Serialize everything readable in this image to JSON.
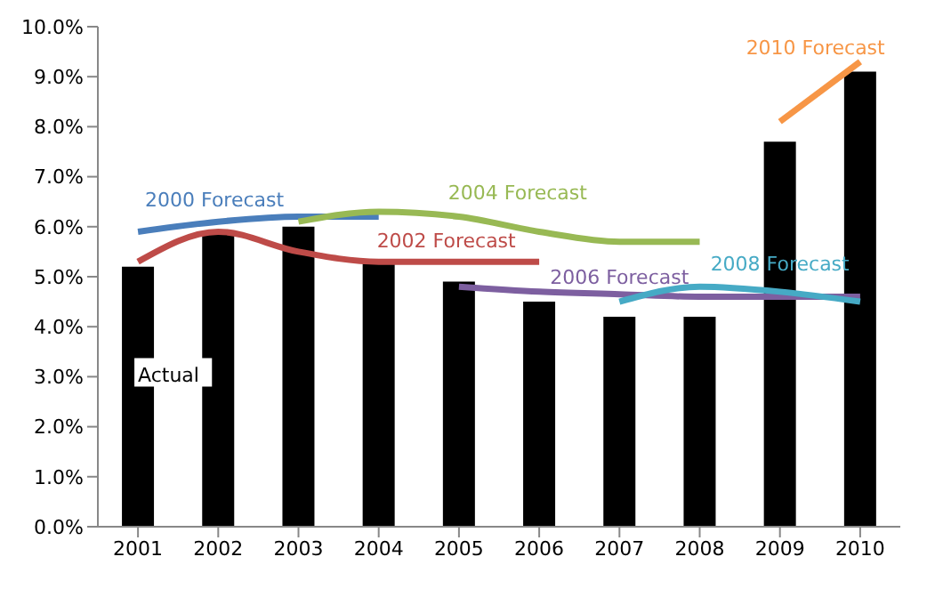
{
  "chart_data": {
    "type": "bar",
    "categories": [
      "2001",
      "2002",
      "2003",
      "2004",
      "2005",
      "2006",
      "2007",
      "2008",
      "2009",
      "2010"
    ],
    "series": [
      {
        "name": "Actual",
        "color": "#000000",
        "values": [
          5.2,
          5.9,
          6.0,
          5.3,
          4.9,
          4.5,
          4.2,
          4.2,
          7.7,
          9.1
        ]
      },
      {
        "name": "2000 Forecast",
        "type": "line",
        "color": "#4a7ebb",
        "values": [
          5.9,
          6.1,
          6.2,
          6.2,
          null,
          null,
          null,
          null,
          null,
          null
        ]
      },
      {
        "name": "2002 Forecast",
        "type": "line",
        "color": "#be4b48",
        "values": [
          5.3,
          5.9,
          5.5,
          5.3,
          5.3,
          5.3,
          null,
          null,
          null,
          null
        ]
      },
      {
        "name": "2004 Forecast",
        "type": "line",
        "color": "#98b954",
        "values": [
          null,
          null,
          6.1,
          6.3,
          6.2,
          5.9,
          5.7,
          5.7,
          null,
          null
        ]
      },
      {
        "name": "2006 Forecast",
        "type": "line",
        "color": "#7d5fa0",
        "values": [
          null,
          null,
          null,
          null,
          4.8,
          4.7,
          4.65,
          4.6,
          4.6,
          4.6
        ]
      },
      {
        "name": "2008 Forecast",
        "type": "line",
        "color": "#46aac5",
        "values": [
          null,
          null,
          null,
          null,
          null,
          null,
          4.5,
          4.8,
          4.7,
          4.5
        ]
      },
      {
        "name": "2010 Forecast",
        "type": "line",
        "color": "#f79646",
        "values": [
          null,
          null,
          null,
          null,
          null,
          null,
          null,
          null,
          8.1,
          9.3
        ]
      }
    ],
    "ylim": [
      0,
      10
    ],
    "yticks": [
      {
        "value": 0,
        "label": "0.0%"
      },
      {
        "value": 1,
        "label": "1.0%"
      },
      {
        "value": 2,
        "label": "2.0%"
      },
      {
        "value": 3,
        "label": "3.0%"
      },
      {
        "value": 4,
        "label": "4.0%"
      },
      {
        "value": 5,
        "label": "5.0%"
      },
      {
        "value": 6,
        "label": "6.0%"
      },
      {
        "value": 7,
        "label": "7.0%"
      },
      {
        "value": 8,
        "label": "8.0%"
      },
      {
        "value": 9,
        "label": "9.0%"
      },
      {
        "value": 10,
        "label": "10.0%"
      }
    ],
    "grid": false,
    "legend": false
  }
}
